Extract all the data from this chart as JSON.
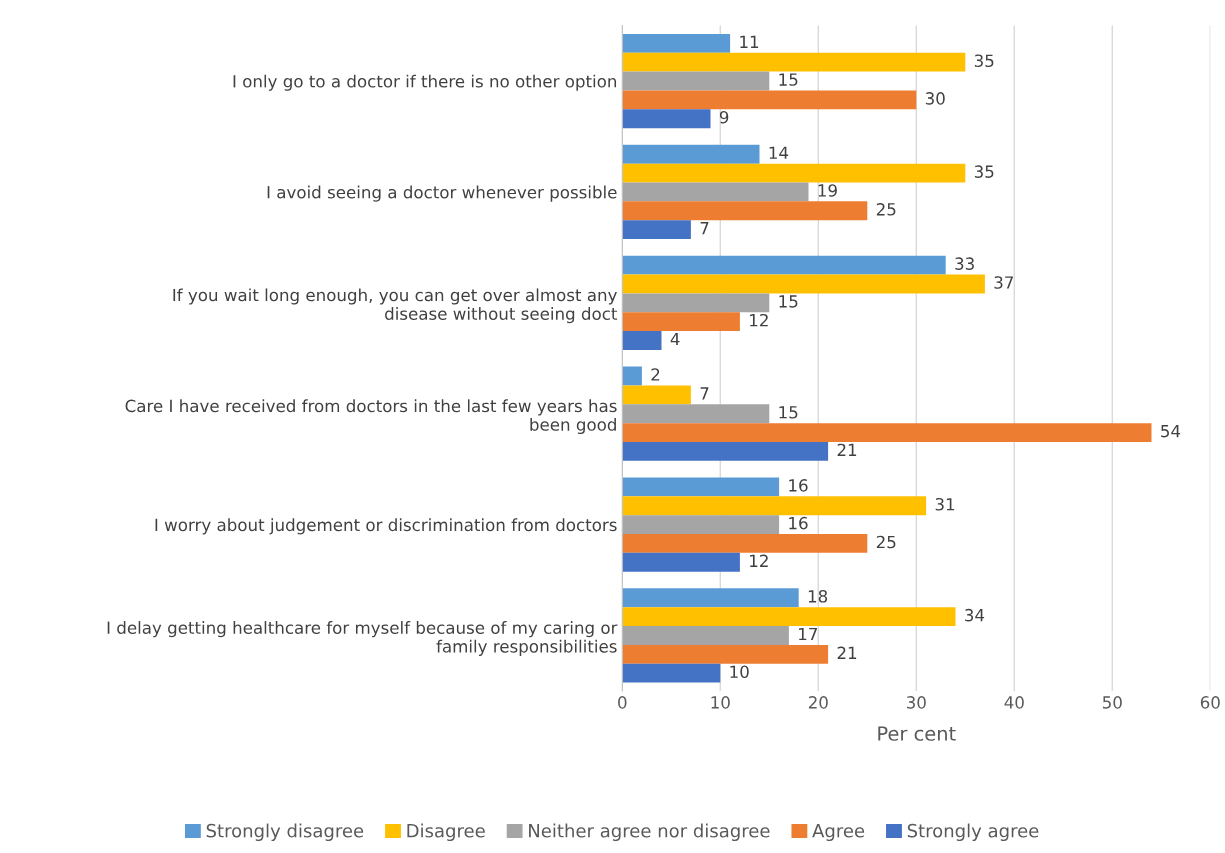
{
  "chart_data": {
    "type": "bar",
    "orientation": "horizontal",
    "xlabel": "Per cent",
    "categories": [
      "I only go to a doctor if there is no other option",
      "I avoid seeing a doctor whenever possible",
      "If you wait long enough, you can get over almost any\ndisease without seeing doct",
      "Care I have received from doctors in the last few years has\nbeen good",
      "I worry about judgement or discrimination from doctors",
      "I delay getting healthcare for myself because of my caring or\nfamily responsibilities"
    ],
    "series": [
      {
        "name": "Strongly disagree",
        "color": "#5b9bd5",
        "values": [
          11,
          14,
          33,
          2,
          16,
          18
        ]
      },
      {
        "name": "Disagree",
        "color": "#ffc000",
        "values": [
          35,
          35,
          37,
          7,
          31,
          34
        ]
      },
      {
        "name": "Neither agree nor disagree",
        "color": "#a5a5a5",
        "values": [
          15,
          19,
          15,
          15,
          16,
          17
        ]
      },
      {
        "name": "Agree",
        "color": "#ed7d31",
        "values": [
          30,
          25,
          12,
          54,
          25,
          21
        ]
      },
      {
        "name": "Strongly agree",
        "color": "#4472c4",
        "values": [
          9,
          7,
          4,
          21,
          12,
          10
        ]
      }
    ],
    "xlim": [
      0,
      60
    ],
    "xticks": [
      0,
      10,
      20,
      30,
      40,
      50,
      60
    ],
    "grid": "x",
    "legend": "bottom",
    "data_labels": true
  }
}
